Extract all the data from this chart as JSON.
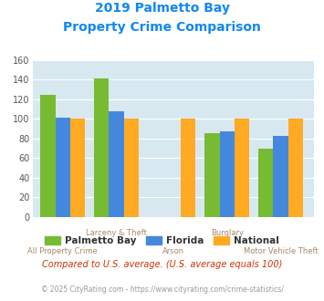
{
  "title_line1": "2019 Palmetto Bay",
  "title_line2": "Property Crime Comparison",
  "series": {
    "Palmetto Bay": [
      125,
      141,
      null,
      85,
      70
    ],
    "Florida": [
      101,
      108,
      null,
      87,
      83
    ],
    "National": [
      100,
      100,
      100,
      100,
      100
    ]
  },
  "colors": {
    "Palmetto Bay": "#77bb33",
    "Florida": "#4488dd",
    "National": "#ffaa22"
  },
  "ylim": [
    0,
    160
  ],
  "yticks": [
    0,
    20,
    40,
    60,
    80,
    100,
    120,
    140,
    160
  ],
  "plot_bg": "#d8e8f0",
  "title_color": "#1188ee",
  "xlabel_color": "#aa8866",
  "legend_label_color": "#333333",
  "footer_text": "Compared to U.S. average. (U.S. average equals 100)",
  "footer_color": "#cc3300",
  "copyright_text": "© 2025 CityRating.com - https://www.cityrating.com/crime-statistics/",
  "copyright_color": "#999999",
  "bar_width": 0.22,
  "group_positions": [
    0.35,
    1.15,
    2.0,
    2.8,
    3.6
  ],
  "xlim": [
    -0.1,
    4.1
  ],
  "grid_color": "#ffffff",
  "cat_labels_top": [
    "",
    "Larceny & Theft",
    "",
    "Burglary",
    ""
  ],
  "cat_labels_bot": [
    "All Property Crime",
    "",
    "Arson",
    "",
    "Motor Vehicle Theft"
  ]
}
